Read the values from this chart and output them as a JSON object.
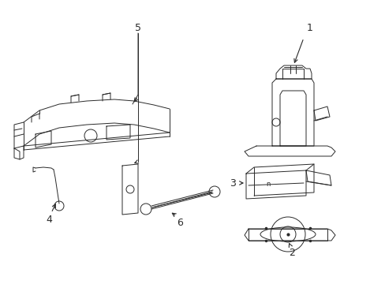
{
  "bg_color": "#ffffff",
  "line_color": "#2a2a2a",
  "label_color": "#000000",
  "label_fontsize": 9,
  "figsize": [
    4.89,
    3.6
  ],
  "dpi": 100
}
